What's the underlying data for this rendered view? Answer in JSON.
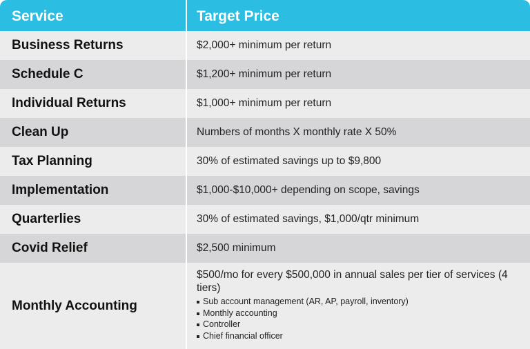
{
  "header": {
    "service": "Service",
    "price": "Target Price"
  },
  "rows": [
    {
      "service": "Business Returns",
      "price": "$2,000+ minimum per return"
    },
    {
      "service": "Schedule C",
      "price": "$1,200+  minimum per return"
    },
    {
      "service": "Individual Returns",
      "price": "$1,000+  minimum per return"
    },
    {
      "service": "Clean Up",
      "price": "Numbers of months X monthly rate X 50%"
    },
    {
      "service": "Tax Planning",
      "price": "30% of estimated savings up to $9,800"
    },
    {
      "service": "Implementation",
      "price": "$1,000-$10,000+ depending on scope, savings"
    },
    {
      "service": "Quarterlies",
      "price": "30% of estimated savings, $1,000/qtr minimum"
    },
    {
      "service": "Covid Relief",
      "price": "$2,500 minimum"
    }
  ],
  "last_row": {
    "service": "Monthly Accounting",
    "price": "$500/mo for every $500,000 in annual sales per tier of services (4 tiers)",
    "bullets": [
      "Sub account management (AR, AP, payroll, inventory)",
      "Monthly accounting",
      "Controller",
      "Chief financial officer"
    ]
  },
  "colors": {
    "header": "#2bbde2",
    "row_light": "#ececed",
    "row_dark": "#d6d6d8"
  }
}
